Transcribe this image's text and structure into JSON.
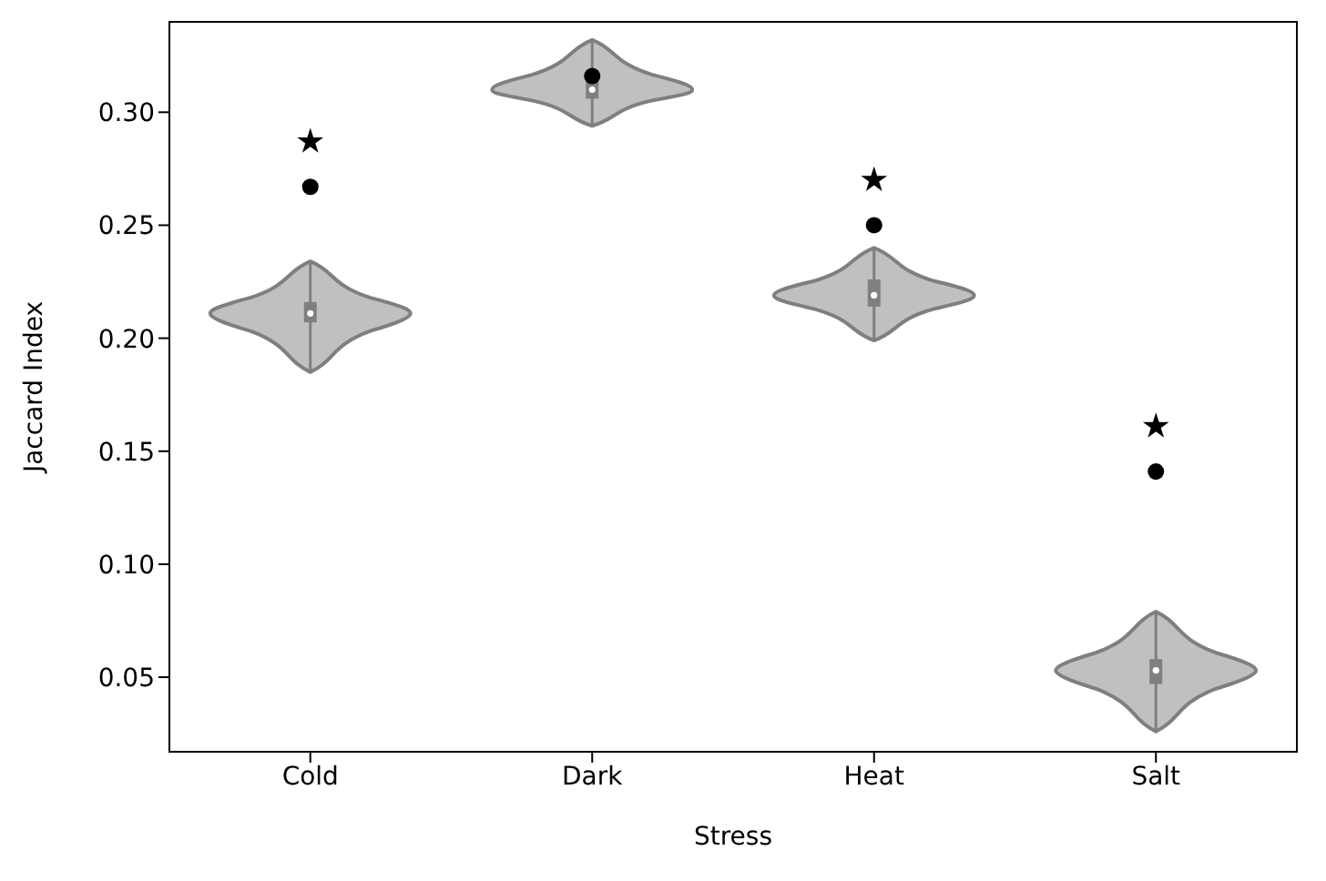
{
  "chart_data": {
    "type": "box",
    "xlabel": "Stress",
    "ylabel": "Jaccard Index",
    "categories": [
      "Cold",
      "Dark",
      "Heat",
      "Salt"
    ],
    "boxes": [
      {
        "low": 0.185,
        "q1": 0.207,
        "median": 0.211,
        "q3": 0.216,
        "high": 0.234
      },
      {
        "low": 0.294,
        "q1": 0.306,
        "median": 0.31,
        "q3": 0.314,
        "high": 0.332
      },
      {
        "low": 0.199,
        "q1": 0.214,
        "median": 0.219,
        "q3": 0.226,
        "high": 0.24
      },
      {
        "low": 0.026,
        "q1": 0.047,
        "median": 0.053,
        "q3": 0.058,
        "high": 0.079
      }
    ],
    "color": "#7f7f7f",
    "series": [
      {
        "type": "scatter",
        "marker": "circle",
        "color": "#000000",
        "x": [
          "Cold",
          "Dark",
          "Heat",
          "Salt"
        ],
        "values": [
          0.267,
          0.316,
          0.25,
          0.141
        ]
      },
      {
        "type": "scatter",
        "marker": "star",
        "color": "#000000",
        "x": [
          "Cold",
          "Heat",
          "Salt"
        ],
        "values": [
          0.287,
          0.27,
          0.161
        ]
      }
    ],
    "ylim": [
      0.017,
      0.34
    ],
    "yticks": [
      {
        "value": 0.05,
        "label": "0.05"
      },
      {
        "value": 0.1,
        "label": "0.10"
      },
      {
        "value": 0.15,
        "label": "0.15"
      },
      {
        "value": 0.2,
        "label": "0.20"
      },
      {
        "value": 0.25,
        "label": "0.25"
      },
      {
        "value": 0.3,
        "label": "0.30"
      }
    ],
    "grid": false
  }
}
